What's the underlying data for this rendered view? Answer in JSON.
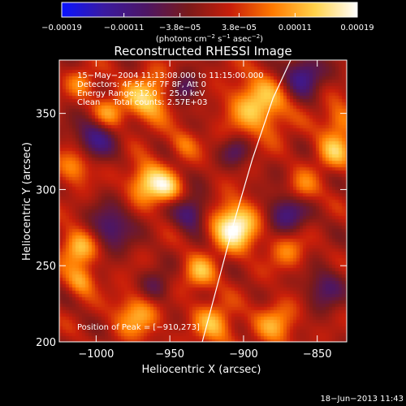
{
  "chart_data": {
    "type": "heatmap",
    "title": "Reconstructed RHESSI Image",
    "xlabel": "Heliocentric X (arcsec)",
    "ylabel": "Heliocentric Y (arcsec)",
    "xlim": [
      -1025,
      -830
    ],
    "ylim": [
      200,
      385
    ],
    "x_ticks": [
      -1000,
      -950,
      -900,
      -850
    ],
    "y_ticks": [
      200,
      250,
      300,
      350
    ],
    "x_tick_labels": [
      "−1000",
      "−950",
      "−900",
      "−850"
    ],
    "y_tick_labels": [
      "200",
      "250",
      "300",
      "350"
    ],
    "colorbar": {
      "range": [
        -0.00019,
        0.00019
      ],
      "ticks": [
        -0.00019,
        -0.00011,
        -3.8e-05,
        3.8e-05,
        0.00011,
        0.00019
      ],
      "tick_labels": [
        "−0.00019",
        "−0.00011",
        "−3.8e−05",
        "3.8e−05",
        "0.00011",
        "0.00019"
      ],
      "units_text": "(photons cm",
      "units_exp1": "−2",
      "units_mid": " s",
      "units_exp2": "−1",
      "units_end": " asec",
      "units_exp3": "−2",
      "units_close": ")",
      "stops": [
        "#0a14ff",
        "#3a1aa0",
        "#4d1664",
        "#7a1a1a",
        "#c81e0a",
        "#ff7a00",
        "#ffd24a",
        "#ffffff"
      ]
    },
    "annotations": [
      "15−May−2004 11:13:08.000 to 11:15:00.000",
      "Detectors: 4F 5F 6F 7F 8F, Att 0",
      "Energy Range: 12.0 − 25.0 keV",
      "Clean     Total counts: 2.57E+03"
    ],
    "peak_label": "Position of Peak = [−910,273]",
    "peak": [
      -910,
      273
    ],
    "limb_curve": [
      [
        -928,
        200
      ],
      [
        -917,
        240
      ],
      [
        -906,
        280
      ],
      [
        -894,
        320
      ],
      [
        -880,
        360
      ],
      [
        -868,
        385
      ]
    ],
    "sources": [
      {
        "x": -906,
        "y": 276,
        "amp": 1.0,
        "s": 11
      },
      {
        "x": -965,
        "y": 305,
        "amp": 0.75,
        "s": 9
      },
      {
        "x": -952,
        "y": 300,
        "amp": 0.55,
        "s": 7
      },
      {
        "x": -965,
        "y": 360,
        "amp": 0.7,
        "s": 11
      },
      {
        "x": -890,
        "y": 355,
        "amp": 0.7,
        "s": 14
      },
      {
        "x": -838,
        "y": 325,
        "amp": 0.55,
        "s": 9
      },
      {
        "x": -835,
        "y": 345,
        "amp": 0.45,
        "s": 8
      },
      {
        "x": -860,
        "y": 300,
        "amp": 0.45,
        "s": 8
      },
      {
        "x": -930,
        "y": 245,
        "amp": 0.55,
        "s": 8
      },
      {
        "x": -972,
        "y": 218,
        "amp": 0.55,
        "s": 11
      },
      {
        "x": -920,
        "y": 212,
        "amp": 0.55,
        "s": 10
      },
      {
        "x": -878,
        "y": 212,
        "amp": 0.5,
        "s": 10
      },
      {
        "x": -1012,
        "y": 262,
        "amp": 0.65,
        "s": 9
      },
      {
        "x": -1010,
        "y": 240,
        "amp": 0.5,
        "s": 7
      },
      {
        "x": -1015,
        "y": 315,
        "amp": 0.5,
        "s": 8
      },
      {
        "x": -992,
        "y": 350,
        "amp": 0.55,
        "s": 8
      },
      {
        "x": -1010,
        "y": 370,
        "amp": 0.4,
        "s": 7
      },
      {
        "x": -870,
        "y": 260,
        "amp": 0.4,
        "s": 9
      },
      {
        "x": -940,
        "y": 330,
        "amp": 0.35,
        "s": 7
      },
      {
        "x": -990,
        "y": 275,
        "amp": -0.55,
        "s": 10
      },
      {
        "x": -1000,
        "y": 335,
        "amp": -0.6,
        "s": 10
      },
      {
        "x": -870,
        "y": 285,
        "amp": -0.6,
        "s": 10
      },
      {
        "x": -935,
        "y": 285,
        "amp": -0.6,
        "s": 8
      },
      {
        "x": -860,
        "y": 375,
        "amp": -0.7,
        "s": 9
      },
      {
        "x": -940,
        "y": 365,
        "amp": -0.5,
        "s": 7
      },
      {
        "x": -960,
        "y": 235,
        "amp": -0.4,
        "s": 8
      },
      {
        "x": -845,
        "y": 235,
        "amp": -0.45,
        "s": 9
      },
      {
        "x": -905,
        "y": 325,
        "amp": -0.4,
        "s": 7
      }
    ]
  },
  "footer": {
    "timestamp": "18−Jun−2013 11:43"
  }
}
